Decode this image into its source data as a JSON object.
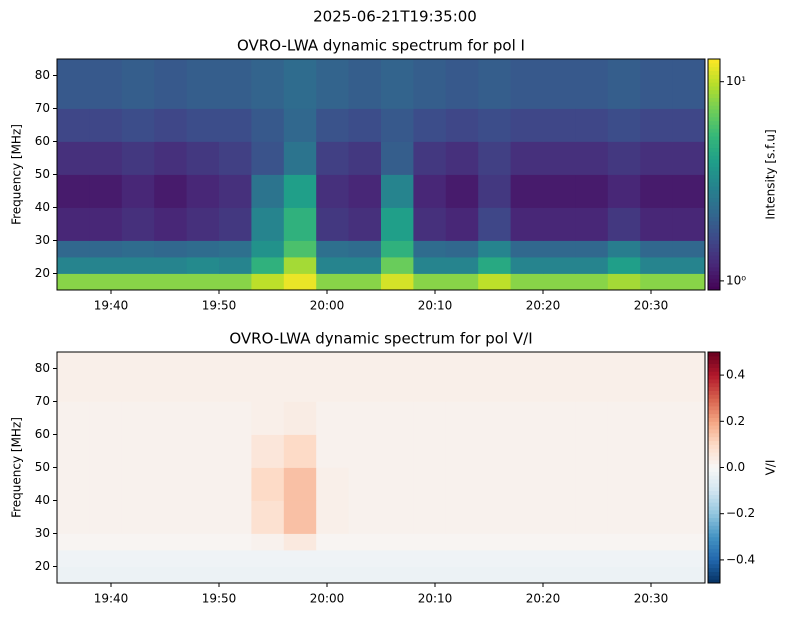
{
  "title": "2025-06-21T19:35:00",
  "chart_data": [
    {
      "type": "heatmap",
      "title": "OVRO-LWA dynamic spectrum for pol I",
      "ylabel": "Frequency [MHz]",
      "xlim": [
        1175,
        1235
      ],
      "ylim": [
        15,
        85
      ],
      "xticks": [
        {
          "value": 1180,
          "label": "19:40"
        },
        {
          "value": 1190,
          "label": "19:50"
        },
        {
          "value": 1200,
          "label": "20:00"
        },
        {
          "value": 1210,
          "label": "20:10"
        },
        {
          "value": 1220,
          "label": "20:20"
        },
        {
          "value": 1230,
          "label": "20:30"
        }
      ],
      "yticks": [
        20,
        30,
        40,
        50,
        60,
        70,
        80
      ],
      "x_edges": [
        1175,
        1178,
        1181,
        1184,
        1187,
        1190,
        1193,
        1196,
        1199,
        1202,
        1205,
        1208,
        1211,
        1214,
        1217,
        1220,
        1223,
        1226,
        1229,
        1232,
        1235
      ],
      "y_edges": [
        15,
        20,
        25,
        30,
        40,
        50,
        60,
        70,
        85
      ],
      "z": [
        [
          8,
          8,
          8,
          8,
          8,
          8,
          10,
          12,
          8,
          8,
          11,
          8,
          8,
          10,
          8,
          8,
          8,
          9,
          8,
          8
        ],
        [
          3,
          3,
          3,
          3,
          3.2,
          3,
          5,
          9,
          3,
          3,
          7,
          3,
          3,
          4.5,
          3,
          3,
          3,
          4,
          3,
          3
        ],
        [
          2.2,
          2.2,
          2.3,
          2.2,
          2.3,
          2.4,
          3.5,
          6,
          2.4,
          2.3,
          5,
          2.3,
          2.2,
          3,
          2.2,
          2.2,
          2.2,
          2.8,
          2.2,
          2.2
        ],
        [
          1.2,
          1.2,
          1.3,
          1.2,
          1.3,
          1.4,
          3,
          5,
          1.4,
          1.3,
          4,
          1.3,
          1.2,
          1.6,
          1.2,
          1.2,
          1.2,
          1.4,
          1.2,
          1.2
        ],
        [
          1.1,
          1.1,
          1.2,
          1.1,
          1.2,
          1.3,
          2.5,
          4,
          1.3,
          1.2,
          3,
          1.2,
          1.1,
          1.4,
          1.1,
          1.1,
          1.1,
          1.2,
          1.1,
          1.1
        ],
        [
          1.3,
          1.3,
          1.4,
          1.3,
          1.4,
          1.5,
          1.8,
          2.5,
          1.5,
          1.4,
          2,
          1.4,
          1.3,
          1.5,
          1.3,
          1.3,
          1.3,
          1.4,
          1.3,
          1.3
        ],
        [
          1.6,
          1.6,
          1.7,
          1.6,
          1.7,
          1.7,
          1.9,
          2.2,
          1.8,
          1.7,
          1.9,
          1.7,
          1.6,
          1.7,
          1.6,
          1.6,
          1.6,
          1.7,
          1.6,
          1.6
        ],
        [
          1.9,
          1.9,
          2,
          1.9,
          2,
          2,
          2.1,
          2.3,
          2.1,
          2,
          2.1,
          2,
          1.9,
          2,
          1.9,
          1.9,
          1.9,
          2,
          1.9,
          1.9
        ]
      ],
      "colorbar": {
        "label": "Intensity [s.f.u]",
        "lim": [
          0.9,
          13
        ],
        "log": true,
        "colormap": "viridis",
        "ticks": [
          {
            "value": 1,
            "label": "10⁰"
          },
          {
            "value": 10,
            "label": "10¹"
          }
        ]
      }
    },
    {
      "type": "heatmap",
      "title": "OVRO-LWA dynamic spectrum for pol V/I",
      "ylabel": "Frequency [MHz]",
      "xlim": [
        1175,
        1235
      ],
      "ylim": [
        15,
        85
      ],
      "xticks": [
        {
          "value": 1180,
          "label": "19:40"
        },
        {
          "value": 1190,
          "label": "19:50"
        },
        {
          "value": 1200,
          "label": "20:00"
        },
        {
          "value": 1210,
          "label": "20:10"
        },
        {
          "value": 1220,
          "label": "20:20"
        },
        {
          "value": 1230,
          "label": "20:30"
        }
      ],
      "yticks": [
        20,
        30,
        40,
        50,
        60,
        70,
        80
      ],
      "x_edges": [
        1175,
        1178,
        1181,
        1184,
        1187,
        1190,
        1193,
        1196,
        1199,
        1202,
        1205,
        1208,
        1211,
        1214,
        1217,
        1220,
        1223,
        1226,
        1229,
        1232,
        1235
      ],
      "y_edges": [
        15,
        20,
        25,
        30,
        40,
        50,
        60,
        70,
        85
      ],
      "z": [
        [
          -0.03,
          -0.03,
          -0.03,
          -0.03,
          -0.03,
          -0.03,
          -0.03,
          -0.03,
          -0.03,
          -0.03,
          -0.03,
          -0.03,
          -0.03,
          -0.03,
          -0.03,
          -0.03,
          -0.03,
          -0.03,
          -0.03,
          -0.03
        ],
        [
          -0.02,
          -0.02,
          -0.02,
          -0.02,
          -0.02,
          -0.02,
          -0.02,
          -0.02,
          -0.02,
          -0.02,
          -0.02,
          -0.02,
          -0.02,
          -0.02,
          -0.02,
          -0.02,
          -0.02,
          -0.02,
          -0.02,
          -0.02
        ],
        [
          0.01,
          0.01,
          0.01,
          0.01,
          0.01,
          0.01,
          0.02,
          0.05,
          0.01,
          0.01,
          0.01,
          0.01,
          0.01,
          0.01,
          0.01,
          0.01,
          0.01,
          0.01,
          0.01,
          0.01
        ],
        [
          0.02,
          0.02,
          0.02,
          0.02,
          0.02,
          0.02,
          0.08,
          0.15,
          0.03,
          0.02,
          0.02,
          0.02,
          0.02,
          0.02,
          0.02,
          0.02,
          0.02,
          0.02,
          0.02,
          0.02
        ],
        [
          0.02,
          0.02,
          0.02,
          0.02,
          0.02,
          0.02,
          0.1,
          0.15,
          0.03,
          0.02,
          0.02,
          0.02,
          0.02,
          0.02,
          0.02,
          0.02,
          0.02,
          0.02,
          0.02,
          0.02
        ],
        [
          0.02,
          0.02,
          0.02,
          0.02,
          0.02,
          0.02,
          0.06,
          0.1,
          0.02,
          0.02,
          0.02,
          0.02,
          0.02,
          0.02,
          0.02,
          0.02,
          0.02,
          0.02,
          0.02,
          0.02
        ],
        [
          0.02,
          0.02,
          0.02,
          0.02,
          0.02,
          0.02,
          0.03,
          0.04,
          0.02,
          0.02,
          0.02,
          0.02,
          0.02,
          0.02,
          0.02,
          0.02,
          0.02,
          0.02,
          0.02,
          0.02
        ],
        [
          0.03,
          0.03,
          0.03,
          0.03,
          0.03,
          0.03,
          0.03,
          0.03,
          0.03,
          0.03,
          0.03,
          0.03,
          0.03,
          0.03,
          0.03,
          0.03,
          0.03,
          0.03,
          0.03,
          0.03
        ]
      ],
      "colorbar": {
        "label": "V/I",
        "lim": [
          -0.5,
          0.5
        ],
        "log": false,
        "colormap": "RdBu_r",
        "ticks": [
          {
            "value": -0.4,
            "label": "−0.4"
          },
          {
            "value": -0.2,
            "label": "−0.2"
          },
          {
            "value": 0,
            "label": "0.0"
          },
          0.2,
          0.4
        ]
      }
    }
  ]
}
